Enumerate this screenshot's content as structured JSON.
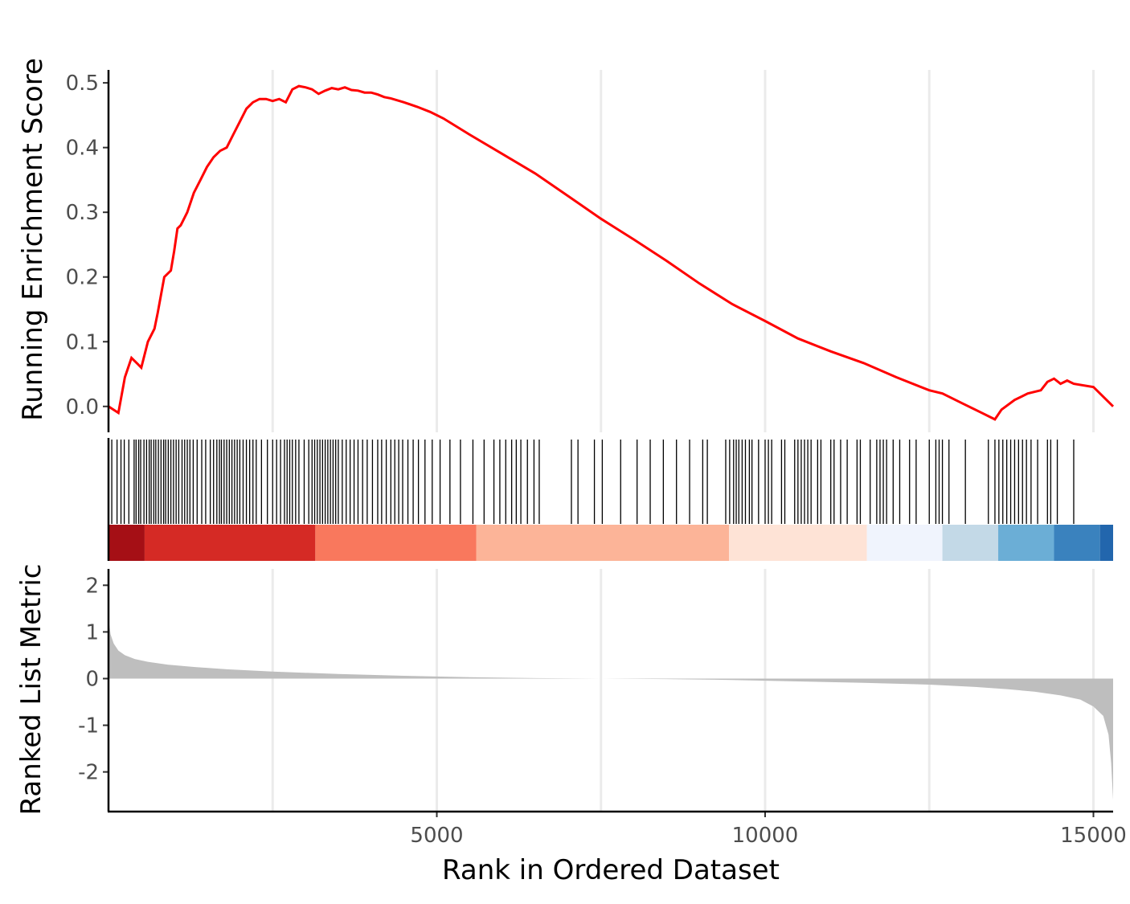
{
  "chart_data": [
    {
      "type": "line",
      "panel": "running-enrichment-score",
      "ylabel": "Running Enrichment Score",
      "xlim": [
        0,
        15300
      ],
      "ylim": [
        -0.04,
        0.52
      ],
      "y_ticks": [
        "0.0",
        "0.1",
        "0.2",
        "0.3",
        "0.4",
        "0.5"
      ],
      "y_tick_values": [
        0.0,
        0.1,
        0.2,
        0.3,
        0.4,
        0.5
      ],
      "x_grid": [
        2500,
        5000,
        7500,
        10000,
        12500,
        15000
      ],
      "grid": true,
      "line_color": "#ff0000",
      "x": [
        0,
        150,
        250,
        350,
        450,
        500,
        600,
        700,
        750,
        850,
        950,
        1000,
        1050,
        1100,
        1200,
        1300,
        1400,
        1500,
        1600,
        1700,
        1800,
        1900,
        2000,
        2100,
        2200,
        2300,
        2400,
        2500,
        2600,
        2700,
        2800,
        2900,
        3000,
        3100,
        3200,
        3300,
        3400,
        3500,
        3600,
        3700,
        3800,
        3900,
        4000,
        4100,
        4200,
        4300,
        4500,
        4700,
        4900,
        5100,
        5500,
        6000,
        6500,
        7000,
        7500,
        8000,
        8500,
        9000,
        9500,
        10000,
        10500,
        11000,
        11500,
        12000,
        12500,
        12700,
        13000,
        13300,
        13500,
        13600,
        13800,
        14000,
        14200,
        14300,
        14400,
        14500,
        14600,
        14700,
        15000,
        15300
      ],
      "y": [
        0.0,
        -0.01,
        0.045,
        0.075,
        0.065,
        0.06,
        0.1,
        0.12,
        0.145,
        0.2,
        0.21,
        0.24,
        0.275,
        0.28,
        0.3,
        0.33,
        0.35,
        0.37,
        0.385,
        0.395,
        0.4,
        0.42,
        0.44,
        0.46,
        0.47,
        0.475,
        0.475,
        0.472,
        0.475,
        0.47,
        0.49,
        0.495,
        0.493,
        0.49,
        0.483,
        0.488,
        0.492,
        0.49,
        0.493,
        0.489,
        0.488,
        0.485,
        0.485,
        0.482,
        0.478,
        0.476,
        0.47,
        0.463,
        0.455,
        0.445,
        0.42,
        0.39,
        0.36,
        0.325,
        0.29,
        0.258,
        0.225,
        0.19,
        0.158,
        0.132,
        0.105,
        0.085,
        0.067,
        0.045,
        0.025,
        0.02,
        0.005,
        -0.01,
        -0.02,
        -0.005,
        0.01,
        0.02,
        0.025,
        0.038,
        0.043,
        0.035,
        0.04,
        0.035,
        0.03,
        0.0
      ]
    },
    {
      "type": "heatmap",
      "panel": "gene-hits-and-rank-color-bar",
      "xlim": [
        0,
        15300
      ],
      "hits": [
        50,
        130,
        190,
        240,
        310,
        390,
        420,
        460,
        490,
        540,
        580,
        620,
        650,
        690,
        720,
        760,
        800,
        840,
        870,
        910,
        950,
        990,
        1030,
        1070,
        1120,
        1160,
        1200,
        1240,
        1290,
        1350,
        1420,
        1480,
        1550,
        1600,
        1650,
        1690,
        1720,
        1760,
        1800,
        1840,
        1880,
        1920,
        1960,
        2000,
        2050,
        2100,
        2150,
        2200,
        2250,
        2330,
        2420,
        2500,
        2560,
        2620,
        2680,
        2720,
        2760,
        2800,
        2850,
        2900,
        2980,
        3050,
        3100,
        3140,
        3180,
        3220,
        3260,
        3300,
        3340,
        3380,
        3420,
        3460,
        3500,
        3560,
        3620,
        3680,
        3740,
        3800,
        3870,
        3940,
        4020,
        4100,
        4160,
        4230,
        4300,
        4360,
        4420,
        4480,
        4560,
        4640,
        4720,
        4820,
        4930,
        5050,
        5200,
        5360,
        5550,
        5720,
        5870,
        5960,
        6050,
        6140,
        6210,
        6280,
        6380,
        6480,
        6560,
        7050,
        7150,
        7400,
        7520,
        7800,
        8050,
        8250,
        8450,
        8650,
        8850,
        9050,
        9120,
        9400,
        9460,
        9520,
        9560,
        9600,
        9650,
        9700,
        9760,
        9800,
        9900,
        10000,
        10050,
        10100,
        10250,
        10300,
        10450,
        10500,
        10550,
        10600,
        10650,
        10700,
        10800,
        10850,
        11000,
        11050,
        11150,
        11250,
        11400,
        11450,
        11600,
        11700,
        11750,
        11800,
        11850,
        11950,
        12050,
        12200,
        12300,
        12500,
        12600,
        12650,
        12700,
        12800,
        13050,
        13400,
        13500,
        13560,
        13620,
        13680,
        13740,
        13800,
        13860,
        13920,
        13980,
        14050,
        14150,
        14300,
        14350,
        14450,
        14700
      ],
      "color_bands": [
        {
          "from": 0,
          "to": 550,
          "color": "#a50f15"
        },
        {
          "from": 550,
          "to": 3150,
          "color": "#d52a25"
        },
        {
          "from": 3150,
          "to": 5600,
          "color": "#f9785d"
        },
        {
          "from": 5600,
          "to": 9450,
          "color": "#fcb498"
        },
        {
          "from": 9450,
          "to": 11550,
          "color": "#fee3d6"
        },
        {
          "from": 11550,
          "to": 12700,
          "color": "#f0f4fd"
        },
        {
          "from": 12700,
          "to": 13550,
          "color": "#c3d9e7"
        },
        {
          "from": 13550,
          "to": 14400,
          "color": "#6baed6"
        },
        {
          "from": 14400,
          "to": 15100,
          "color": "#3a82be"
        },
        {
          "from": 15100,
          "to": 15300,
          "color": "#2266ad"
        }
      ]
    },
    {
      "type": "area",
      "panel": "ranked-list-metric",
      "xlabel": "Rank in Ordered Dataset",
      "ylabel": "Ranked List Metric",
      "xlim": [
        0,
        15300
      ],
      "ylim": [
        -2.85,
        2.35
      ],
      "x_ticks": [
        "5000",
        "10000",
        "15000"
      ],
      "x_tick_values": [
        5000,
        10000,
        15000
      ],
      "y_ticks": [
        "2",
        "1",
        "0",
        "-1",
        "-2"
      ],
      "y_tick_values": [
        2,
        1,
        0,
        -1,
        -2
      ],
      "x_grid": [
        2500,
        5000,
        7500,
        10000,
        12500,
        15000
      ],
      "fill_color": "#bebebe",
      "x": [
        0,
        30,
        80,
        150,
        250,
        400,
        600,
        900,
        1300,
        1800,
        2500,
        3500,
        4500,
        5500,
        6500,
        7500,
        8500,
        9500,
        10500,
        11500,
        12500,
        13200,
        13700,
        14100,
        14500,
        14800,
        15000,
        15150,
        15230,
        15270,
        15300
      ],
      "y": [
        1.3,
        0.95,
        0.75,
        0.6,
        0.5,
        0.42,
        0.36,
        0.3,
        0.25,
        0.2,
        0.15,
        0.1,
        0.06,
        0.03,
        0.01,
        0.0,
        -0.01,
        -0.03,
        -0.06,
        -0.09,
        -0.13,
        -0.18,
        -0.23,
        -0.28,
        -0.36,
        -0.45,
        -0.6,
        -0.8,
        -1.2,
        -1.8,
        -2.6
      ]
    }
  ]
}
